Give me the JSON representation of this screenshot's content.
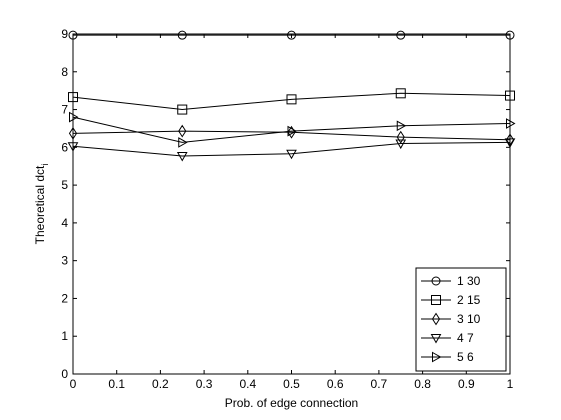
{
  "chart_data": {
    "type": "line",
    "title": "",
    "xlabel": "Prob. of edge connection",
    "ylabel": "Theoretical dct",
    "ylabel_subscript": "i",
    "xlim": [
      0,
      1
    ],
    "ylim": [
      0,
      9
    ],
    "x_ticks": [
      "0",
      "0.1",
      "0.2",
      "0.3",
      "0.4",
      "0.5",
      "0.6",
      "0.7",
      "0.8",
      "0.9",
      "1"
    ],
    "y_ticks": [
      "0",
      "1",
      "2",
      "3",
      "4",
      "5",
      "6",
      "7",
      "8",
      "9"
    ],
    "x": [
      0,
      0.25,
      0.5,
      0.75,
      1
    ],
    "grid": false,
    "legend_position": "bottom-right",
    "series": [
      {
        "name": "1  30",
        "marker": "circle",
        "values": [
          8.97,
          8.97,
          8.97,
          8.97,
          8.97
        ]
      },
      {
        "name": "2  15",
        "marker": "square",
        "values": [
          7.33,
          7.0,
          7.27,
          7.43,
          7.37
        ]
      },
      {
        "name": "3  10",
        "marker": "diamond",
        "values": [
          6.37,
          6.43,
          6.4,
          6.27,
          6.2
        ]
      },
      {
        "name": "4  7",
        "marker": "triangle-down",
        "values": [
          6.03,
          5.77,
          5.83,
          6.1,
          6.13
        ]
      },
      {
        "name": "5  6",
        "marker": "triangle-right",
        "values": [
          6.8,
          6.13,
          6.43,
          6.57,
          6.63
        ]
      }
    ]
  }
}
